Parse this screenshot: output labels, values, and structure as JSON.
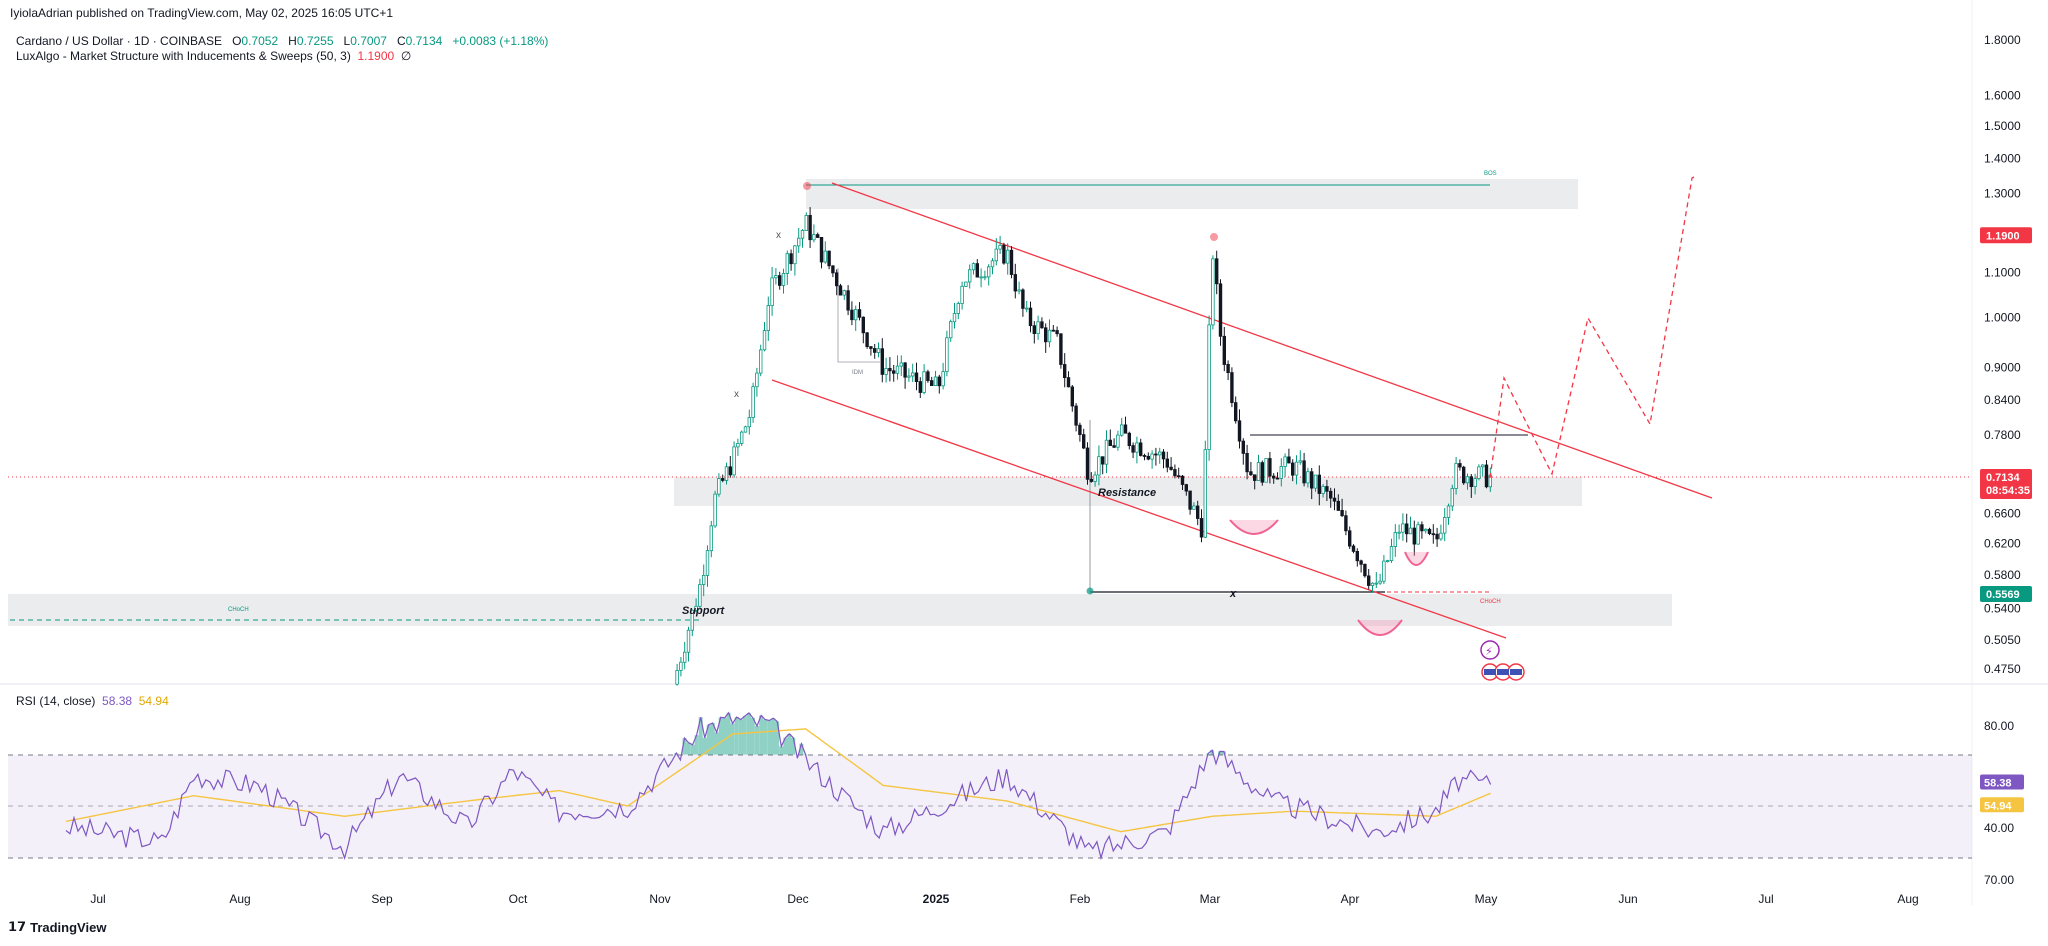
{
  "header": {
    "published": "IyiolaAdrian published on TradingView.com, May 02, 2025 16:05 UTC+1"
  },
  "legend": {
    "symbol": "Cardano / US Dollar · 1D · COINBASE",
    "o_key": "O",
    "o_val": "0.7052",
    "h_key": "H",
    "h_val": "0.7255",
    "l_key": "L",
    "l_val": "0.7007",
    "c_key": "C",
    "c_val": "0.7134",
    "change": "+0.0083 (+1.18%)",
    "indicator": "LuxAlgo - Market Structure with Inducements & Sweeps (50, 3)",
    "indicator_value": "1.1900",
    "indicator_symbol": "∅"
  },
  "rsi_legend": {
    "label": "RSI (14, close)",
    "rsi_value": "58.38",
    "ma_value": "54.94"
  },
  "footer": {
    "brand": "TradingView"
  },
  "price_tags": {
    "current": "0.7134",
    "countdown": "08:54:35",
    "green": "0.5569",
    "red": "1.1900",
    "rsi": "58.38",
    "rsi_ma": "54.94"
  },
  "annotations": {
    "resistance": "Resistance",
    "support": "Support",
    "x_mark": "x",
    "chart_x1": "x",
    "chart_x2": "x",
    "choch_left": "CHoCH",
    "choch_right": "CHoCH",
    "bos": "BOS",
    "idm": "IDM"
  },
  "colors": {
    "up": "#089981",
    "down": "#131722",
    "channel": "#f23645",
    "zone": "#e8e9eb",
    "rsi": "#7e57c2",
    "rsi_ma": "#f5c542",
    "projection": "#f23645",
    "sweep": "#f06292"
  },
  "chart_data": [
    {
      "type": "line",
      "title": "Cardano / US Dollar · 1D · COINBASE",
      "scale": "log",
      "x_labels": [
        "Jul",
        "Aug",
        "Sep",
        "Oct",
        "Nov",
        "Dec",
        "2025",
        "Feb",
        "Mar",
        "Apr",
        "May",
        "Jun",
        "Jul",
        "Aug"
      ],
      "y_ticks": [
        1.8,
        1.6,
        1.5,
        1.4,
        1.3,
        1.1,
        1.0,
        0.9,
        0.84,
        0.78,
        0.66,
        0.62,
        0.58,
        0.54,
        0.505,
        0.475
      ],
      "y_tick_labels": [
        "1.8000",
        "1.6000",
        "1.5000",
        "1.4000",
        "1.3000",
        "1.1000",
        "1.0000",
        "0.9000",
        "0.8400",
        "0.7800",
        "0.6600",
        "0.6200",
        "0.5800",
        "0.5400",
        "0.5050",
        "0.4750"
      ],
      "ylim": [
        0.455,
        1.85
      ],
      "series": [
        {
          "x": [
            "2024-11-04",
            "2024-11-10",
            "2024-11-13",
            "2024-11-17",
            "2024-11-21",
            "2024-11-25",
            "2024-12-03",
            "2024-12-10",
            "2024-12-20",
            "2025-01-01",
            "2025-01-06",
            "2025-01-16",
            "2025-01-20",
            "2025-01-27",
            "2025-02-03",
            "2025-02-10",
            "2025-02-20",
            "2025-02-28",
            "2025-03-02",
            "2025-03-04",
            "2025-03-10",
            "2025-03-20",
            "2025-03-28",
            "2025-04-07",
            "2025-04-12",
            "2025-04-20",
            "2025-04-24",
            "2025-05-02"
          ],
          "values": [
            0.46,
            0.57,
            0.68,
            0.74,
            0.82,
            1.05,
            1.22,
            1.08,
            0.9,
            0.86,
            1.08,
            1.15,
            1.0,
            0.95,
            0.72,
            0.78,
            0.74,
            0.64,
            1.17,
            0.95,
            0.72,
            0.73,
            0.68,
            0.56,
            0.64,
            0.62,
            0.72,
            0.7134
          ]
        }
      ]
    },
    {
      "type": "line",
      "title": "RSI (14, close)",
      "x_labels": [
        "Jul",
        "Aug",
        "Sep",
        "Oct",
        "Nov",
        "Dec",
        "2025",
        "Feb",
        "Mar",
        "Apr",
        "May",
        "Jun",
        "Jul",
        "Aug"
      ],
      "y_tick_labels": [
        "80.00",
        "40.00",
        "70.00"
      ],
      "ylim": [
        20,
        100
      ],
      "series": [
        {
          "name": "RSI",
          "x": [
            "2024-06-24",
            "2024-07-15",
            "2024-07-22",
            "2024-08-05",
            "2024-08-24",
            "2024-09-05",
            "2024-09-20",
            "2024-09-30",
            "2024-10-10",
            "2024-10-25",
            "2024-11-10",
            "2024-11-17",
            "2024-11-25",
            "2024-12-10",
            "2024-12-20",
            "2025-01-01",
            "2025-01-16",
            "2025-02-03",
            "2025-02-20",
            "2025-03-02",
            "2025-03-15",
            "2025-04-07",
            "2025-04-20",
            "2025-04-25",
            "2025-05-02"
          ],
          "values": [
            42,
            36,
            62,
            58,
            34,
            62,
            42,
            64,
            48,
            50,
            80,
            84,
            82,
            56,
            40,
            50,
            62,
            32,
            40,
            72,
            52,
            40,
            48,
            60,
            58.38
          ]
        },
        {
          "name": "RSI-based MA",
          "x": [
            "2024-06-24",
            "2024-07-22",
            "2024-08-24",
            "2024-09-20",
            "2024-10-10",
            "2024-10-25",
            "2024-11-17",
            "2024-12-03",
            "2024-12-20",
            "2025-01-16",
            "2025-02-10",
            "2025-03-02",
            "2025-03-20",
            "2025-04-20",
            "2025-05-02"
          ],
          "values": [
            44,
            54,
            46,
            52,
            56,
            50,
            78,
            80,
            58,
            52,
            40,
            46,
            48,
            46,
            54.94
          ]
        }
      ]
    }
  ]
}
